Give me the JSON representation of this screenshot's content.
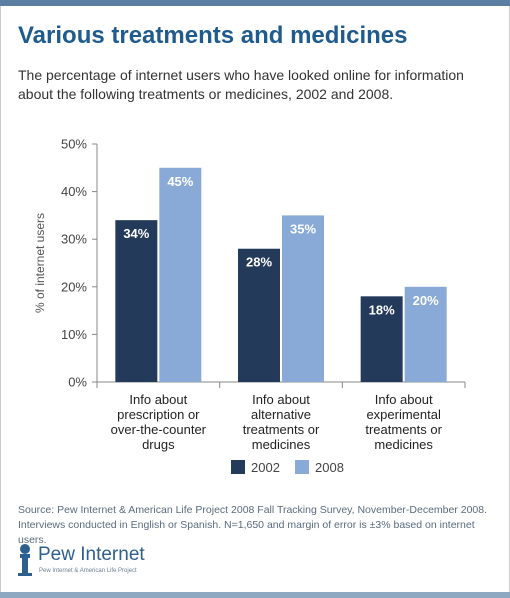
{
  "title": "Various treatments and medicines",
  "subtitle": "The percentage of internet users who have looked online for information about the following treatments or medicines, 2002 and 2008.",
  "source_line1": "Source:  Pew Internet & American Life Project 2008 Fall Tracking Survey, November-December 2008.",
  "source_line2": "Interviews conducted in English or Spanish. N=1,650 and margin of error is ±3% based on internet users.",
  "logo": {
    "name": "Pew Internet",
    "tagline": "Pew Internet & American Life Project"
  },
  "chart_data": {
    "type": "bar",
    "categories": [
      [
        "Info about",
        "prescription or",
        "over-the-counter",
        "drugs"
      ],
      [
        "Info about",
        "alternative",
        "treatments or",
        "medicines"
      ],
      [
        "Info about",
        "experimental",
        "treatments or",
        "medicines"
      ]
    ],
    "series": [
      {
        "name": "2002",
        "values": [
          34,
          28,
          18
        ],
        "labels": [
          "34%",
          "28%",
          "18%"
        ],
        "color": "#243a5a"
      },
      {
        "name": "2008",
        "values": [
          45,
          35,
          20
        ],
        "labels": [
          "45%",
          "35%",
          "20%"
        ],
        "color": "#89a9d6"
      }
    ],
    "ylabel": "% of internet users",
    "yticks": [
      "0%",
      "10%",
      "20%",
      "30%",
      "40%",
      "50%"
    ],
    "ylim": [
      0,
      50
    ],
    "grid": false,
    "legend": "bottom-center"
  }
}
